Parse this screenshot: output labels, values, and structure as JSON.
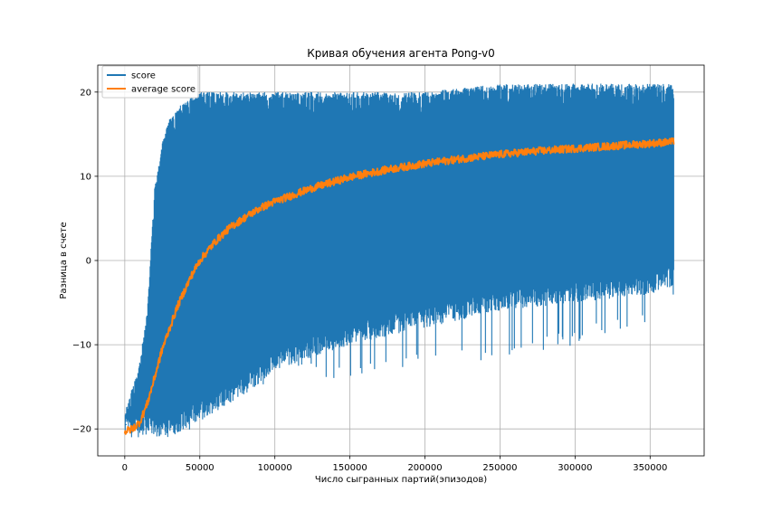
{
  "chart_data": {
    "type": "line",
    "title": "Кривая обучения агента Pong-v0",
    "xlabel": "Число сыгранных партий(эпизодов)",
    "ylabel": "Разница в счете",
    "xlim": [
      -18000,
      386000
    ],
    "ylim": [
      -23.2,
      23.2
    ],
    "x_ticks": [
      0,
      50000,
      100000,
      150000,
      200000,
      250000,
      300000,
      350000
    ],
    "x_tick_labels": [
      "0",
      "50000",
      "100000",
      "150000",
      "200000",
      "250000",
      "300000",
      "350000"
    ],
    "y_ticks": [
      -20,
      -10,
      0,
      10,
      20
    ],
    "y_tick_labels": [
      "−20",
      "−10",
      "0",
      "10",
      "20"
    ],
    "grid": true,
    "legend_position": "top-left",
    "series": [
      {
        "name": "score",
        "color": "#1f77b4",
        "x_range": [
          0,
          366000
        ],
        "envelope": {
          "x": [
            0,
            5000,
            10000,
            15000,
            20000,
            25000,
            30000,
            40000,
            50000,
            60000,
            80000,
            100000,
            150000,
            200000,
            250000,
            300000,
            350000,
            366000
          ],
          "upper": [
            -18,
            -15,
            -12,
            -6,
            9,
            14,
            17,
            19,
            20,
            20,
            20,
            20,
            20,
            20,
            21,
            21,
            21,
            21
          ],
          "lower": [
            -21,
            -21,
            -21,
            -21,
            -21,
            -21,
            -21,
            -20,
            -19,
            -18,
            -16,
            -13,
            -10,
            -8,
            -6,
            -5,
            -4,
            -3
          ],
          "spike_low": [
            -21,
            -21,
            -21,
            -21,
            -21,
            -21,
            -21,
            -21,
            -20,
            -19,
            -16,
            -14,
            -14,
            -13,
            -12,
            -10,
            -8,
            -5
          ]
        }
      },
      {
        "name": "average score",
        "color": "#ff7f0e",
        "x": [
          0,
          5000,
          10000,
          15000,
          20000,
          25000,
          30000,
          35000,
          40000,
          45000,
          50000,
          60000,
          70000,
          80000,
          90000,
          100000,
          125000,
          150000,
          175000,
          200000,
          225000,
          250000,
          275000,
          300000,
          325000,
          350000,
          366000
        ],
        "values": [
          -20.3,
          -20.0,
          -19.2,
          -17.0,
          -13.8,
          -10.5,
          -8.0,
          -5.5,
          -3.5,
          -1.6,
          0.0,
          2.2,
          3.9,
          5.1,
          6.2,
          7.0,
          8.6,
          9.9,
          10.8,
          11.5,
          12.1,
          12.6,
          13.0,
          13.3,
          13.6,
          13.9,
          14.1
        ]
      }
    ]
  }
}
